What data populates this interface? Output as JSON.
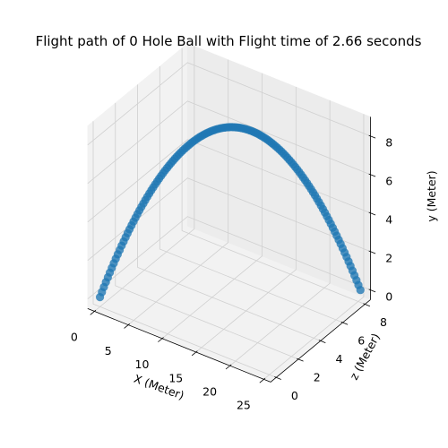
{
  "chart_data": {
    "type": "scatter",
    "projection": "3d",
    "title": "Flight path of 0 Hole Ball with Flight time of 2.66 seconds",
    "x_axis": {
      "label": "X (Meter)",
      "ticks": [
        0,
        5,
        10,
        15,
        20,
        25
      ],
      "range": [
        -1,
        26
      ]
    },
    "z_axis": {
      "label": "z (Meter)",
      "ticks": [
        0,
        2,
        4,
        6,
        8
      ],
      "range": [
        -0.5,
        8.5
      ]
    },
    "y_axis": {
      "label": "y (Meter)",
      "ticks": [
        0,
        2,
        4,
        6,
        8
      ],
      "range": [
        -0.5,
        9
      ]
    },
    "grid": true,
    "series": [
      {
        "color": "#1f77b4",
        "trajectory": {
          "x_start": 0,
          "x_end": 25,
          "z_start": 0,
          "z_end": 8.2,
          "y_start": 0,
          "y_peak": 8.65,
          "y_end": 0,
          "points": 133
        }
      }
    ]
  }
}
